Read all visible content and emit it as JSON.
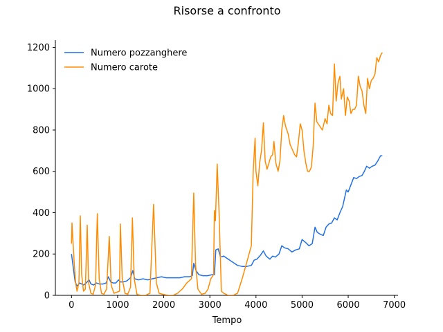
{
  "chart_data": {
    "type": "line",
    "title": "Risorse a confronto",
    "xlabel": "Tempo",
    "ylabel": "",
    "xlim": [
      -350,
      7080
    ],
    "ylim": [
      0,
      1235
    ],
    "xticks": [
      0,
      1000,
      2000,
      3000,
      4000,
      5000,
      6000,
      7000
    ],
    "yticks": [
      0,
      200,
      400,
      600,
      800,
      1000,
      1200
    ],
    "legend_position": "top-left",
    "grid": false,
    "series": [
      {
        "name": "Numero pozzanghere",
        "color": "#1f6fe5",
        "points": [
          [
            0,
            200
          ],
          [
            40,
            130
          ],
          [
            80,
            65
          ],
          [
            120,
            45
          ],
          [
            180,
            60
          ],
          [
            220,
            55
          ],
          [
            260,
            50
          ],
          [
            320,
            60
          ],
          [
            380,
            75
          ],
          [
            420,
            55
          ],
          [
            480,
            50
          ],
          [
            540,
            60
          ],
          [
            600,
            55
          ],
          [
            680,
            55
          ],
          [
            750,
            60
          ],
          [
            800,
            90
          ],
          [
            850,
            65
          ],
          [
            900,
            60
          ],
          [
            960,
            60
          ],
          [
            1020,
            75
          ],
          [
            1060,
            65
          ],
          [
            1120,
            65
          ],
          [
            1200,
            70
          ],
          [
            1280,
            85
          ],
          [
            1330,
            120
          ],
          [
            1370,
            80
          ],
          [
            1450,
            75
          ],
          [
            1550,
            80
          ],
          [
            1650,
            75
          ],
          [
            1750,
            80
          ],
          [
            1850,
            85
          ],
          [
            1950,
            90
          ],
          [
            2050,
            85
          ],
          [
            2150,
            85
          ],
          [
            2250,
            85
          ],
          [
            2350,
            85
          ],
          [
            2450,
            90
          ],
          [
            2560,
            90
          ],
          [
            2620,
            95
          ],
          [
            2650,
            155
          ],
          [
            2700,
            120
          ],
          [
            2760,
            100
          ],
          [
            2850,
            95
          ],
          [
            2950,
            95
          ],
          [
            3050,
            100
          ],
          [
            3100,
            100
          ],
          [
            3130,
            220
          ],
          [
            3180,
            225
          ],
          [
            3230,
            185
          ],
          [
            3300,
            190
          ],
          [
            3400,
            175
          ],
          [
            3500,
            160
          ],
          [
            3600,
            145
          ],
          [
            3700,
            140
          ],
          [
            3800,
            140
          ],
          [
            3900,
            145
          ],
          [
            3960,
            170
          ],
          [
            4020,
            175
          ],
          [
            4100,
            195
          ],
          [
            4160,
            215
          ],
          [
            4220,
            190
          ],
          [
            4300,
            175
          ],
          [
            4360,
            190
          ],
          [
            4420,
            185
          ],
          [
            4500,
            200
          ],
          [
            4560,
            240
          ],
          [
            4620,
            230
          ],
          [
            4700,
            225
          ],
          [
            4780,
            210
          ],
          [
            4860,
            220
          ],
          [
            4940,
            225
          ],
          [
            5000,
            270
          ],
          [
            5080,
            255
          ],
          [
            5150,
            240
          ],
          [
            5220,
            250
          ],
          [
            5280,
            330
          ],
          [
            5330,
            305
          ],
          [
            5400,
            295
          ],
          [
            5460,
            290
          ],
          [
            5520,
            330
          ],
          [
            5580,
            345
          ],
          [
            5640,
            350
          ],
          [
            5700,
            375
          ],
          [
            5760,
            365
          ],
          [
            5820,
            400
          ],
          [
            5880,
            430
          ],
          [
            5920,
            470
          ],
          [
            5960,
            510
          ],
          [
            6000,
            500
          ],
          [
            6060,
            535
          ],
          [
            6120,
            570
          ],
          [
            6180,
            565
          ],
          [
            6240,
            575
          ],
          [
            6300,
            580
          ],
          [
            6350,
            600
          ],
          [
            6400,
            625
          ],
          [
            6460,
            615
          ],
          [
            6520,
            625
          ],
          [
            6580,
            630
          ],
          [
            6640,
            650
          ],
          [
            6700,
            675
          ],
          [
            6740,
            675
          ]
        ]
      },
      {
        "name": "Numero carote",
        "color": "#ff8c00",
        "points": [
          [
            0,
            250
          ],
          [
            10,
            350
          ],
          [
            30,
            270
          ],
          [
            60,
            150
          ],
          [
            90,
            60
          ],
          [
            120,
            20
          ],
          [
            160,
            60
          ],
          [
            190,
            385
          ],
          [
            220,
            100
          ],
          [
            260,
            20
          ],
          [
            300,
            30
          ],
          [
            340,
            340
          ],
          [
            370,
            60
          ],
          [
            420,
            10
          ],
          [
            470,
            5
          ],
          [
            520,
            50
          ],
          [
            560,
            395
          ],
          [
            600,
            80
          ],
          [
            650,
            10
          ],
          [
            700,
            5
          ],
          [
            760,
            30
          ],
          [
            820,
            285
          ],
          [
            860,
            50
          ],
          [
            920,
            10
          ],
          [
            980,
            15
          ],
          [
            1040,
            20
          ],
          [
            1060,
            345
          ],
          [
            1100,
            80
          ],
          [
            1160,
            10
          ],
          [
            1220,
            5
          ],
          [
            1280,
            40
          ],
          [
            1320,
            375
          ],
          [
            1360,
            80
          ],
          [
            1420,
            5
          ],
          [
            1500,
            0
          ],
          [
            1600,
            0
          ],
          [
            1700,
            10
          ],
          [
            1780,
            440
          ],
          [
            1840,
            60
          ],
          [
            1900,
            10
          ],
          [
            1980,
            5
          ],
          [
            2100,
            0
          ],
          [
            2200,
            0
          ],
          [
            2300,
            10
          ],
          [
            2400,
            30
          ],
          [
            2500,
            60
          ],
          [
            2600,
            80
          ],
          [
            2650,
            495
          ],
          [
            2690,
            150
          ],
          [
            2740,
            30
          ],
          [
            2820,
            5
          ],
          [
            2900,
            10
          ],
          [
            2960,
            30
          ],
          [
            3020,
            80
          ],
          [
            3080,
            100
          ],
          [
            3100,
            410
          ],
          [
            3120,
            360
          ],
          [
            3160,
            635
          ],
          [
            3200,
            400
          ],
          [
            3250,
            20
          ],
          [
            3300,
            10
          ],
          [
            3400,
            0
          ],
          [
            3500,
            0
          ],
          [
            3600,
            10
          ],
          [
            3700,
            80
          ],
          [
            3800,
            160
          ],
          [
            3900,
            240
          ],
          [
            3940,
            600
          ],
          [
            3980,
            760
          ],
          [
            4000,
            600
          ],
          [
            4040,
            530
          ],
          [
            4080,
            640
          ],
          [
            4120,
            700
          ],
          [
            4160,
            835
          ],
          [
            4200,
            650
          ],
          [
            4240,
            610
          ],
          [
            4280,
            640
          ],
          [
            4320,
            670
          ],
          [
            4360,
            680
          ],
          [
            4390,
            745
          ],
          [
            4430,
            640
          ],
          [
            4480,
            600
          ],
          [
            4520,
            650
          ],
          [
            4560,
            800
          ],
          [
            4600,
            870
          ],
          [
            4640,
            820
          ],
          [
            4700,
            780
          ],
          [
            4740,
            730
          ],
          [
            4800,
            700
          ],
          [
            4840,
            680
          ],
          [
            4880,
            670
          ],
          [
            4920,
            740
          ],
          [
            4960,
            830
          ],
          [
            5000,
            800
          ],
          [
            5040,
            700
          ],
          [
            5080,
            640
          ],
          [
            5120,
            600
          ],
          [
            5160,
            600
          ],
          [
            5200,
            620
          ],
          [
            5240,
            720
          ],
          [
            5280,
            930
          ],
          [
            5320,
            840
          ],
          [
            5380,
            820
          ],
          [
            5440,
            800
          ],
          [
            5500,
            855
          ],
          [
            5540,
            830
          ],
          [
            5580,
            920
          ],
          [
            5620,
            880
          ],
          [
            5660,
            870
          ],
          [
            5700,
            1120
          ],
          [
            5740,
            940
          ],
          [
            5780,
            1030
          ],
          [
            5820,
            1060
          ],
          [
            5850,
            950
          ],
          [
            5900,
            1000
          ],
          [
            5940,
            870
          ],
          [
            5980,
            960
          ],
          [
            6020,
            940
          ],
          [
            6060,
            880
          ],
          [
            6100,
            900
          ],
          [
            6140,
            900
          ],
          [
            6180,
            920
          ],
          [
            6220,
            1060
          ],
          [
            6260,
            1010
          ],
          [
            6300,
            990
          ],
          [
            6340,
            920
          ],
          [
            6380,
            880
          ],
          [
            6420,
            1050
          ],
          [
            6460,
            1000
          ],
          [
            6500,
            1040
          ],
          [
            6540,
            1050
          ],
          [
            6580,
            1070
          ],
          [
            6620,
            1150
          ],
          [
            6660,
            1130
          ],
          [
            6700,
            1160
          ],
          [
            6740,
            1175
          ]
        ]
      }
    ]
  }
}
